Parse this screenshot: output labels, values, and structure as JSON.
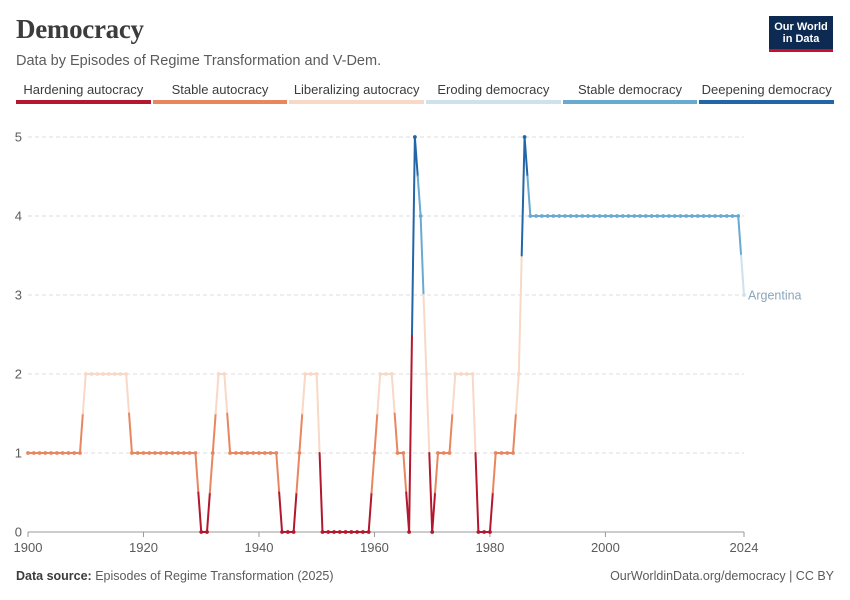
{
  "header": {
    "title": "Democracy",
    "subtitle": "Data by Episodes of Regime Transformation and V-Dem.",
    "logo_line1": "Our World",
    "logo_line2": "in Data"
  },
  "legend": [
    {
      "label": "Hardening autocracy",
      "color": "#b3182e",
      "level": 0
    },
    {
      "label": "Stable autocracy",
      "color": "#e8875f",
      "level": 1
    },
    {
      "label": "Liberalizing autocracy",
      "color": "#f8d8c6",
      "level": 2
    },
    {
      "label": "Eroding democracy",
      "color": "#cfe1ec",
      "level": 3
    },
    {
      "label": "Stable democracy",
      "color": "#68aad0",
      "level": 4
    },
    {
      "label": "Deepening democracy",
      "color": "#2266a7",
      "level": 5
    }
  ],
  "footer": {
    "source_label": "Data source:",
    "source_text": "Episodes of Regime Transformation (2025)",
    "url": "OurWorldinData.org/democracy | CC BY"
  },
  "chart_data": {
    "type": "line",
    "title": "Democracy",
    "xlabel": "",
    "ylabel": "",
    "xlim": [
      1900,
      2024
    ],
    "ylim": [
      0,
      5
    ],
    "x_ticks": [
      1900,
      1920,
      1940,
      1960,
      1980,
      2000,
      2024
    ],
    "y_ticks": [
      0,
      1,
      2,
      3,
      4,
      5
    ],
    "grid": "horizontal dashed",
    "series": [
      {
        "name": "Argentina",
        "x": [
          1900,
          1901,
          1902,
          1903,
          1904,
          1905,
          1906,
          1907,
          1908,
          1909,
          1910,
          1911,
          1912,
          1913,
          1914,
          1915,
          1916,
          1917,
          1918,
          1919,
          1920,
          1921,
          1922,
          1923,
          1924,
          1925,
          1926,
          1927,
          1928,
          1929,
          1930,
          1931,
          1932,
          1933,
          1934,
          1935,
          1936,
          1937,
          1938,
          1939,
          1940,
          1941,
          1942,
          1943,
          1944,
          1945,
          1946,
          1947,
          1948,
          1949,
          1950,
          1951,
          1952,
          1953,
          1954,
          1955,
          1956,
          1957,
          1958,
          1959,
          1960,
          1961,
          1962,
          1963,
          1964,
          1965,
          1966,
          1967,
          1968,
          1969,
          1970,
          1971,
          1972,
          1973,
          1974,
          1975,
          1976,
          1977,
          1978,
          1979,
          1980,
          1981,
          1982,
          1983,
          1984,
          1985,
          1986,
          1987,
          1988,
          1989,
          1990,
          1991,
          1992,
          1993,
          1994,
          1995,
          1996,
          1997,
          1998,
          1999,
          2000,
          2001,
          2002,
          2003,
          2004,
          2005,
          2006,
          2007,
          2008,
          2009,
          2010,
          2011,
          2012,
          2013,
          2014,
          2015,
          2016,
          2017,
          2018,
          2019,
          2020,
          2021,
          2022,
          2023,
          2024
        ],
        "values": [
          1,
          1,
          1,
          1,
          1,
          1,
          1,
          1,
          1,
          1,
          2,
          2,
          2,
          2,
          2,
          2,
          2,
          2,
          1,
          1,
          1,
          1,
          1,
          1,
          1,
          1,
          1,
          1,
          1,
          1,
          0,
          0,
          1,
          2,
          2,
          1,
          1,
          1,
          1,
          1,
          1,
          1,
          1,
          1,
          0,
          0,
          0,
          1,
          2,
          2,
          2,
          0,
          0,
          0,
          0,
          0,
          0,
          0,
          0,
          0,
          1,
          2,
          2,
          2,
          1,
          1,
          0,
          5,
          4,
          2,
          0,
          1,
          1,
          1,
          2,
          2,
          2,
          2,
          0,
          0,
          0,
          1,
          1,
          1,
          1,
          2,
          5,
          4,
          4,
          4,
          4,
          4,
          4,
          4,
          4,
          4,
          4,
          4,
          4,
          4,
          4,
          4,
          4,
          4,
          4,
          4,
          4,
          4,
          4,
          4,
          4,
          4,
          4,
          4,
          4,
          4,
          4,
          4,
          4,
          4,
          4,
          4,
          4,
          4,
          3
        ]
      }
    ],
    "series_label": "Argentina"
  }
}
